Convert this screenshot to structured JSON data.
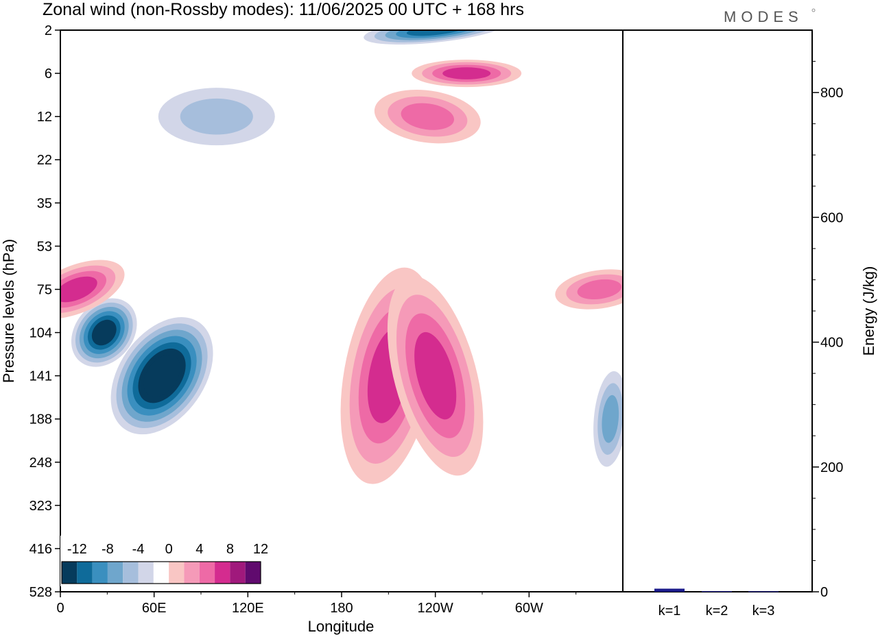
{
  "title": "Zonal wind (non-Rossby modes):  11/06/2025  00 UTC  + 168 hrs",
  "logo": "MODES",
  "colors": {
    "neg": [
      "#063b5c",
      "#0f6b9a",
      "#3a8fbf",
      "#6fa6cc",
      "#a6bedc",
      "#d2d6e8"
    ],
    "zero": "#ffffff",
    "pos": [
      "#f9c6c4",
      "#f59ab8",
      "#ee6aa6",
      "#d42c8f",
      "#a0197c",
      "#600a6e"
    ],
    "bar": "#1a1a8c"
  },
  "chart_data": [
    {
      "type": "heatmap",
      "title": "Zonal wind (non-Rossby modes):  11/06/2025  00 UTC  + 168 hrs",
      "xlabel": "Longitude",
      "ylabel": "Pressure levels (hPa)",
      "x_ticks": [
        "0",
        "60E",
        "120E",
        "180",
        "120W",
        "60W"
      ],
      "x_tick_values": [
        0,
        60,
        120,
        180,
        240,
        300
      ],
      "xlim": [
        0,
        360
      ],
      "y_ticks": [
        "2",
        "6",
        "12",
        "22",
        "35",
        "53",
        "75",
        "104",
        "141",
        "188",
        "248",
        "323",
        "416",
        "528"
      ],
      "colorbar": {
        "labels": [
          "-12",
          "-8",
          "-4",
          "0",
          "4",
          "8",
          "12"
        ],
        "levels": [
          -14,
          -12,
          -10,
          -8,
          -6,
          -4,
          -2,
          2,
          4,
          6,
          8,
          10,
          12,
          14
        ]
      },
      "features": [
        {
          "sign": "neg",
          "lon": 65,
          "level": "141",
          "peak": -14
        },
        {
          "sign": "neg",
          "lon": 28,
          "level": "104",
          "peak": -13
        },
        {
          "sign": "neg",
          "lon": 240,
          "level": "2",
          "peak": -10
        },
        {
          "sign": "neg",
          "lon": 352,
          "level": "188",
          "peak": -6
        },
        {
          "sign": "neg",
          "lon": 100,
          "level": "12",
          "peak": -4
        },
        {
          "sign": "pos",
          "lon": 210,
          "level": "141",
          "peak": 9
        },
        {
          "sign": "pos",
          "lon": 240,
          "level": "141",
          "peak": 9
        },
        {
          "sign": "pos",
          "lon": 10,
          "level": "75",
          "peak": 8
        },
        {
          "sign": "pos",
          "lon": 260,
          "level": "6",
          "peak": 8
        },
        {
          "sign": "pos",
          "lon": 235,
          "level": "12",
          "peak": 7
        },
        {
          "sign": "pos",
          "lon": 345,
          "level": "75",
          "peak": 7
        }
      ]
    },
    {
      "type": "bar",
      "categories": [
        "k=1",
        "k=2",
        "k=3"
      ],
      "values": [
        5,
        1,
        0.8
      ],
      "ylabel": "Energy (J/kg)",
      "ylim": [
        0,
        900
      ],
      "y_ticks": [
        0,
        200,
        400,
        600,
        800
      ]
    }
  ]
}
